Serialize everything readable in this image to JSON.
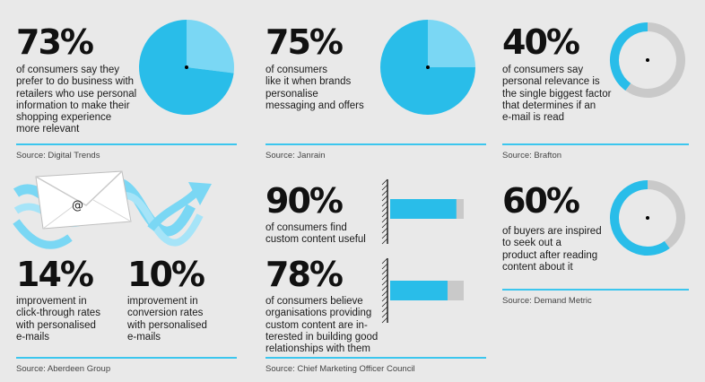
{
  "colors": {
    "dark_blue": "#29bde9",
    "light_blue": "#7ad7f4",
    "gray": "#c9c9c9",
    "rule": "#3cc6ee",
    "background": "#e9e9e9"
  },
  "stats": [
    {
      "value": "73%",
      "text": "of consumers say they\nprefer to do business with\nretailers who use personal\ninformation to make their\nshopping experience\nmore relevant",
      "source": "Source: Digital Trends"
    },
    {
      "value": "75%",
      "text": "of consumers\nlike it when brands\npersonalise\nmessaging and offers",
      "source": "Source: Janrain"
    },
    {
      "value": "40%",
      "text": "of consumers say\npersonal relevance is\nthe single biggest factor\nthat determines if an\ne-mail is read",
      "source": "Source:  Brafton"
    },
    {
      "value": "14%",
      "text": "improvement in\nclick-through rates\nwith personalised\ne-mails",
      "source": "Source: Aberdeen Group"
    },
    {
      "value": "10%",
      "text": "improvement in\nconversion rates\nwith personalised\ne-mails"
    },
    {
      "value": "90%",
      "text": "of consumers find\ncustom content useful",
      "source": "Source: Chief Marketing Officer Council"
    },
    {
      "value": "78%",
      "text": "of consumers believe\norganisations providing\ncustom content are in-\nterested in building  good\nrelationships with them"
    },
    {
      "value": "60%",
      "text": "of buyers are inspired\nto seek out a\nproduct after reading\ncontent about it",
      "source": "Source: Demand Metric"
    }
  ],
  "email_icon": {
    "symbol": "@"
  },
  "chart_data": [
    {
      "type": "pie",
      "values": [
        73,
        27
      ]
    },
    {
      "type": "pie",
      "values": [
        75,
        25
      ]
    },
    {
      "type": "pie",
      "values": [
        40,
        60
      ]
    },
    {
      "type": "bar",
      "orientation": "horizontal",
      "values": [
        90
      ],
      "xlim": [
        0,
        100
      ]
    },
    {
      "type": "bar",
      "orientation": "horizontal",
      "values": [
        78
      ],
      "xlim": [
        0,
        100
      ]
    },
    {
      "type": "pie",
      "values": [
        60,
        40
      ]
    }
  ]
}
